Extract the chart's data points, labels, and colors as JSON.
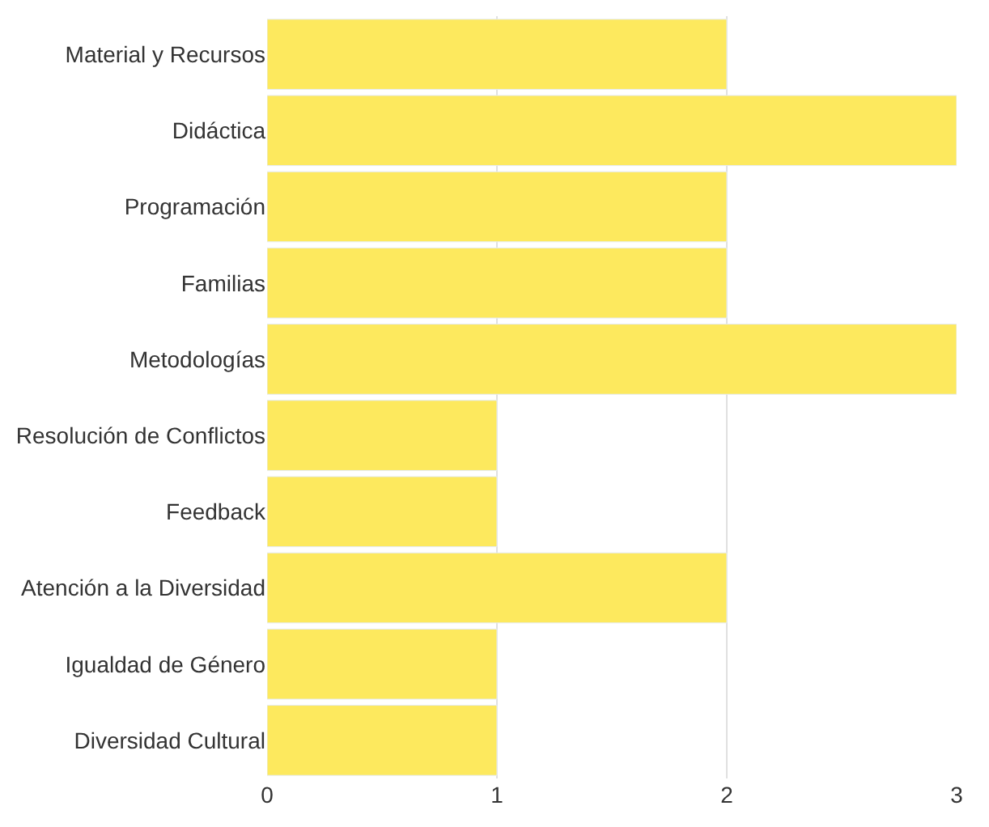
{
  "chart_data": {
    "type": "bar",
    "orientation": "horizontal",
    "categories": [
      "Material y Recursos",
      "Didáctica",
      "Programación",
      "Familias",
      "Metodologías",
      "Resolución de Conflictos",
      "Feedback",
      "Atención a la Diversidad",
      "Igualdad de Género",
      "Diversidad Cultural"
    ],
    "values": [
      2,
      3,
      2,
      2,
      3,
      1,
      1,
      2,
      1,
      1
    ],
    "color": "#fde95e",
    "xlim": [
      0,
      3
    ],
    "xticks": [
      0,
      1,
      2,
      3
    ],
    "grid": "x"
  }
}
